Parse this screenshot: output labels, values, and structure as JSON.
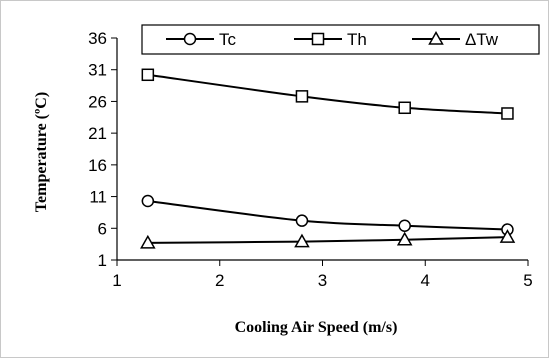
{
  "chart_data": {
    "type": "line",
    "title": "",
    "xlabel": "Cooling Air Speed (m/s)",
    "ylabel": "Temperature (ºC)",
    "xlim": [
      1,
      5
    ],
    "ylim": [
      1,
      36
    ],
    "xticks": [
      "1",
      "2",
      "3",
      "4",
      "5"
    ],
    "yticks": [
      "1",
      "6",
      "11",
      "16",
      "21",
      "26",
      "31",
      "36"
    ],
    "grid": false,
    "legend_position": "top",
    "series": [
      {
        "name": "Tc",
        "marker": "circle",
        "x": [
          1.3,
          2.8,
          3.8,
          4.8
        ],
        "y": [
          10.3,
          7.2,
          6.4,
          5.8
        ]
      },
      {
        "name": "Th",
        "marker": "square",
        "x": [
          1.3,
          2.8,
          3.8,
          4.8
        ],
        "y": [
          30.2,
          26.8,
          25.0,
          24.1
        ]
      },
      {
        "name": "ΔTw",
        "marker": "triangle",
        "x": [
          1.3,
          2.8,
          3.8,
          4.8
        ],
        "y": [
          3.7,
          3.9,
          4.2,
          4.6
        ]
      }
    ]
  }
}
